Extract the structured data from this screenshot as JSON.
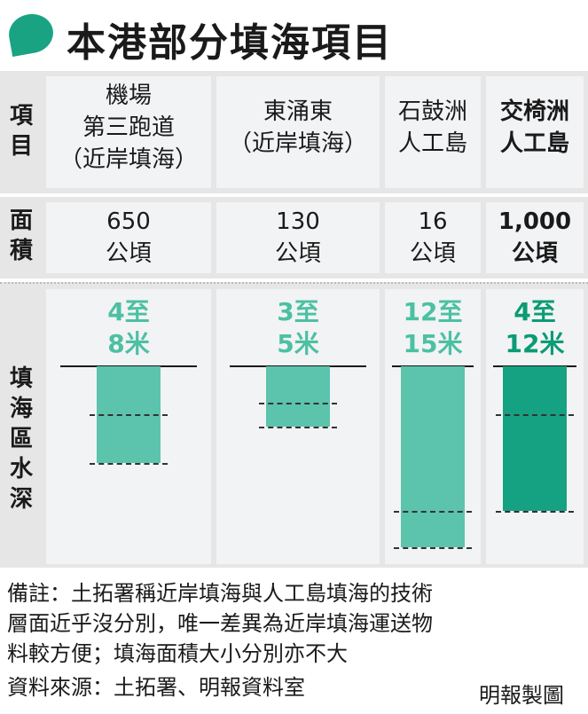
{
  "title": "本港部分填海項目",
  "row_labels": {
    "project": "項目",
    "area": "面積",
    "depth": "填海區水深"
  },
  "colors": {
    "accent": "#1aa383",
    "bar_light": "#5cc3ad",
    "bar_dark": "#15a283",
    "label_light": "#4cc0a3",
    "label_dark": "#0b9b75"
  },
  "chart_data": {
    "type": "bar",
    "categories": [
      "機場第三跑道（近岸填海）",
      "東涌東（近岸填海）",
      "石鼓洲人工島",
      "交椅洲人工島"
    ],
    "headers": [
      [
        "機場",
        "第三跑道",
        "（近岸填海）"
      ],
      [
        "東涌東",
        "（近岸填海）"
      ],
      [
        "石鼓洲",
        "人工島"
      ],
      [
        "交椅洲",
        "人工島"
      ]
    ],
    "area": {
      "values": [
        "650",
        "130",
        "16",
        "1,000"
      ],
      "unit": "公頃"
    },
    "depth": {
      "min": [
        4,
        3,
        12,
        4
      ],
      "max": [
        8,
        5,
        15,
        12
      ],
      "labels": [
        [
          "4至",
          "8米"
        ],
        [
          "3至",
          "5米"
        ],
        [
          "12至",
          "15米"
        ],
        [
          "4至",
          "12米"
        ]
      ]
    },
    "highlight_index": 3,
    "ylim": [
      0,
      15.5
    ]
  },
  "footer": {
    "notes": [
      "備註：土拓署稱近岸填海與人工島填海的技術",
      "層面近乎沒分別，唯一差異為近岸填海運送物",
      "料較方便；填海面積大小分別亦不大",
      "資料來源：土拓署、明報資料室"
    ],
    "credit": "明報製圖"
  }
}
